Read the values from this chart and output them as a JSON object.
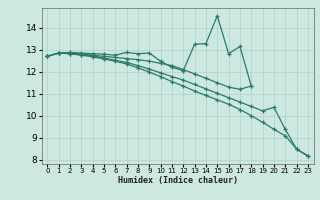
{
  "xlabel": "Humidex (Indice chaleur)",
  "bg_color": "#cce8e0",
  "grid_color": "#aad4c8",
  "line_color": "#2d7a6a",
  "xlim": [
    -0.5,
    23.5
  ],
  "ylim": [
    7.8,
    14.9
  ],
  "xticks": [
    0,
    1,
    2,
    3,
    4,
    5,
    6,
    7,
    8,
    9,
    10,
    11,
    12,
    13,
    14,
    15,
    16,
    17,
    18,
    19,
    20,
    21,
    22,
    23
  ],
  "yticks": [
    8,
    9,
    10,
    11,
    12,
    13,
    14
  ],
  "lines": [
    {
      "x": [
        0,
        1,
        2,
        3,
        4,
        5,
        6,
        7,
        8,
        9,
        10,
        11,
        12,
        13,
        14,
        15,
        16,
        17,
        18
      ],
      "y": [
        12.7,
        12.85,
        12.88,
        12.85,
        12.82,
        12.8,
        12.75,
        12.88,
        12.82,
        12.85,
        12.48,
        12.2,
        12.05,
        13.25,
        13.28,
        14.55,
        12.82,
        13.15,
        11.35
      ]
    },
    {
      "x": [
        0,
        1,
        2,
        3,
        4,
        5,
        6,
        7,
        8,
        9,
        10,
        11,
        12,
        13,
        14,
        15,
        16,
        17,
        18
      ],
      "y": [
        12.7,
        12.85,
        12.85,
        12.8,
        12.75,
        12.7,
        12.65,
        12.6,
        12.55,
        12.48,
        12.38,
        12.28,
        12.1,
        11.9,
        11.7,
        11.5,
        11.3,
        11.2,
        11.35
      ]
    },
    {
      "x": [
        0,
        1,
        2,
        3,
        4,
        5,
        6,
        7,
        8,
        9,
        10,
        11,
        12,
        13,
        14,
        15,
        16,
        17,
        18,
        19,
        20,
        21,
        22,
        23
      ],
      "y": [
        12.7,
        12.85,
        12.82,
        12.78,
        12.72,
        12.62,
        12.52,
        12.42,
        12.28,
        12.12,
        11.95,
        11.78,
        11.62,
        11.42,
        11.22,
        11.02,
        10.82,
        10.62,
        10.42,
        10.22,
        10.38,
        9.38,
        8.48,
        8.18
      ]
    },
    {
      "x": [
        0,
        1,
        2,
        3,
        4,
        5,
        6,
        7,
        8,
        9,
        10,
        11,
        12,
        13,
        14,
        15,
        16,
        17,
        18,
        19,
        20,
        21,
        22,
        23
      ],
      "y": [
        12.7,
        12.85,
        12.82,
        12.75,
        12.68,
        12.58,
        12.48,
        12.35,
        12.18,
        11.98,
        11.78,
        11.55,
        11.35,
        11.12,
        10.92,
        10.72,
        10.52,
        10.28,
        10.0,
        9.7,
        9.38,
        9.08,
        8.48,
        8.15
      ]
    }
  ]
}
